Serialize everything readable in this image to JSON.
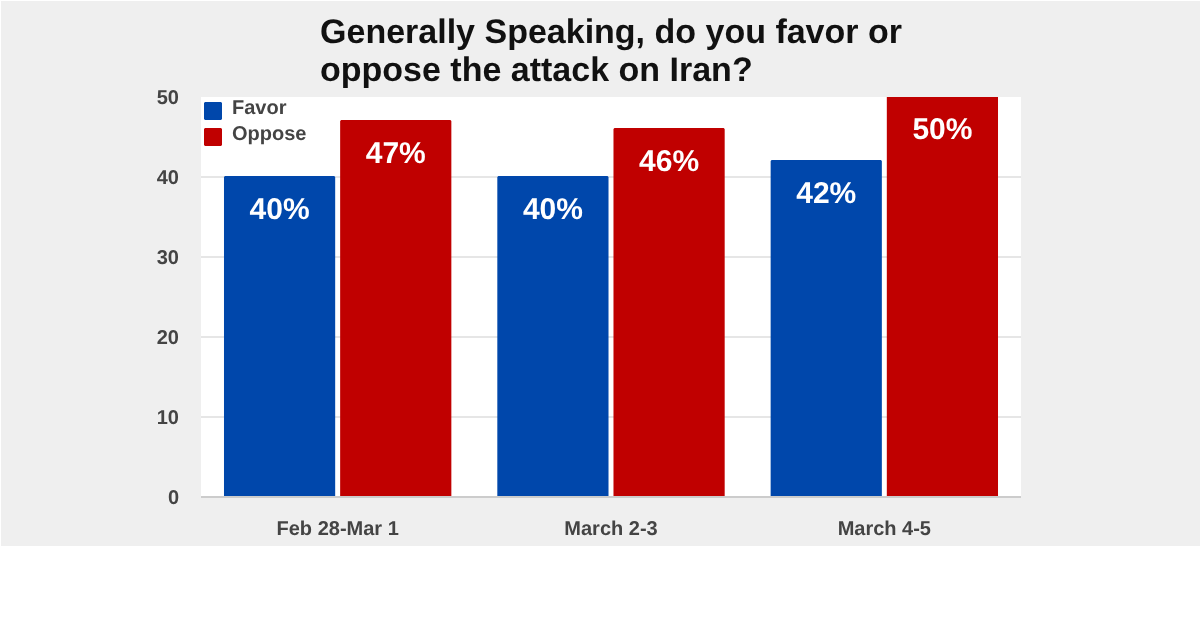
{
  "chart_data": {
    "type": "bar",
    "title": "Generally Speaking, do you favor or oppose the attack on Iran?",
    "categories": [
      "Feb 28-Mar 1",
      "March 2-3",
      "March 4-5"
    ],
    "series": [
      {
        "name": "Favor",
        "color": "#0047ab",
        "values": [
          40,
          40,
          42
        ],
        "value_labels": [
          "40%",
          "40%",
          "42%"
        ]
      },
      {
        "name": "Oppose",
        "color": "#c00000",
        "values": [
          47,
          46,
          50
        ],
        "value_labels": [
          "47%",
          "46%",
          "50%"
        ]
      }
    ],
    "ylim": [
      0,
      50
    ],
    "yticks": [
      0,
      10,
      20,
      30,
      40,
      50
    ],
    "grid": "y",
    "legend": "top"
  }
}
